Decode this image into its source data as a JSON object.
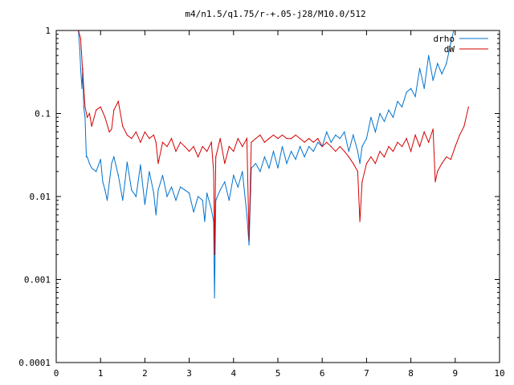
{
  "chart_data": {
    "type": "line",
    "title": "m4/n1.5/q1.75/r-+.05-j28/M10.0/512",
    "xlabel": "",
    "ylabel": "",
    "xlim": [
      0,
      10
    ],
    "ylim": [
      0.0001,
      1
    ],
    "yscale": "log",
    "grid": false,
    "legend_position": "top-right",
    "x_ticks": [
      0,
      1,
      2,
      3,
      4,
      5,
      6,
      7,
      8,
      9,
      10
    ],
    "x_tick_labels": [
      "0",
      "1",
      "2",
      "3",
      "4",
      "5",
      "6",
      "7",
      "8",
      "9",
      "10"
    ],
    "y_ticks": [
      0.0001,
      0.001,
      0.01,
      0.1,
      1
    ],
    "y_tick_labels": [
      "0.0001",
      "0.001",
      "0.01",
      "0.1",
      "1"
    ],
    "series": [
      {
        "name": "drho",
        "color": "#0072ce",
        "x": [
          0.5,
          0.53,
          0.55,
          0.58,
          0.6,
          0.62,
          0.65,
          0.68,
          0.7,
          0.75,
          0.8,
          0.9,
          1.0,
          1.05,
          1.1,
          1.15,
          1.2,
          1.25,
          1.3,
          1.4,
          1.5,
          1.55,
          1.6,
          1.7,
          1.8,
          1.9,
          2.0,
          2.1,
          2.2,
          2.25,
          2.3,
          2.4,
          2.5,
          2.6,
          2.7,
          2.8,
          2.9,
          3.0,
          3.1,
          3.2,
          3.3,
          3.35,
          3.4,
          3.5,
          3.55,
          3.57,
          3.6,
          3.7,
          3.8,
          3.9,
          4.0,
          4.1,
          4.2,
          4.3,
          4.35,
          4.4,
          4.5,
          4.6,
          4.7,
          4.8,
          4.9,
          5.0,
          5.1,
          5.2,
          5.3,
          5.4,
          5.5,
          5.6,
          5.7,
          5.8,
          5.9,
          6.0,
          6.1,
          6.2,
          6.3,
          6.4,
          6.5,
          6.6,
          6.7,
          6.8,
          6.85,
          6.9,
          7.0,
          7.1,
          7.2,
          7.3,
          7.4,
          7.5,
          7.6,
          7.7,
          7.8,
          7.9,
          8.0,
          8.1,
          8.2,
          8.3,
          8.4,
          8.5,
          8.6,
          8.7,
          8.8,
          8.9,
          9.0
        ],
        "y": [
          1.0,
          0.6,
          0.35,
          0.2,
          0.35,
          0.12,
          0.09,
          0.03,
          0.03,
          0.025,
          0.022,
          0.02,
          0.028,
          0.015,
          0.012,
          0.009,
          0.015,
          0.025,
          0.03,
          0.018,
          0.009,
          0.015,
          0.026,
          0.012,
          0.01,
          0.024,
          0.008,
          0.02,
          0.011,
          0.006,
          0.012,
          0.018,
          0.01,
          0.013,
          0.009,
          0.013,
          0.012,
          0.011,
          0.0065,
          0.01,
          0.009,
          0.005,
          0.011,
          0.007,
          0.005,
          0.0006,
          0.009,
          0.012,
          0.015,
          0.009,
          0.018,
          0.013,
          0.02,
          0.006,
          0.0026,
          0.022,
          0.025,
          0.02,
          0.03,
          0.022,
          0.035,
          0.022,
          0.04,
          0.025,
          0.035,
          0.028,
          0.04,
          0.03,
          0.04,
          0.035,
          0.045,
          0.04,
          0.06,
          0.045,
          0.055,
          0.05,
          0.06,
          0.035,
          0.055,
          0.035,
          0.025,
          0.04,
          0.05,
          0.09,
          0.06,
          0.1,
          0.08,
          0.11,
          0.09,
          0.14,
          0.12,
          0.18,
          0.2,
          0.16,
          0.35,
          0.2,
          0.5,
          0.25,
          0.4,
          0.3,
          0.4,
          0.7,
          1.2
        ]
      },
      {
        "name": "dW",
        "color": "#d40000",
        "x": [
          0.5,
          0.55,
          0.6,
          0.65,
          0.7,
          0.75,
          0.8,
          0.9,
          1.0,
          1.1,
          1.2,
          1.25,
          1.3,
          1.4,
          1.5,
          1.6,
          1.7,
          1.8,
          1.9,
          2.0,
          2.1,
          2.2,
          2.25,
          2.3,
          2.4,
          2.5,
          2.6,
          2.7,
          2.8,
          2.9,
          3.0,
          3.1,
          3.2,
          3.3,
          3.4,
          3.5,
          3.55,
          3.57,
          3.6,
          3.7,
          3.8,
          3.9,
          4.0,
          4.1,
          4.2,
          4.3,
          4.35,
          4.4,
          4.5,
          4.6,
          4.7,
          4.8,
          4.9,
          5.0,
          5.1,
          5.2,
          5.3,
          5.4,
          5.5,
          5.6,
          5.7,
          5.8,
          5.9,
          6.0,
          6.1,
          6.2,
          6.3,
          6.4,
          6.5,
          6.6,
          6.7,
          6.8,
          6.85,
          6.9,
          7.0,
          7.1,
          7.2,
          7.3,
          7.4,
          7.5,
          7.6,
          7.7,
          7.8,
          7.9,
          8.0,
          8.1,
          8.2,
          8.3,
          8.4,
          8.5,
          8.55,
          8.6,
          8.7,
          8.8,
          8.9,
          9.0,
          9.1,
          9.2,
          9.3
        ],
        "y": [
          1.0,
          0.8,
          0.3,
          0.12,
          0.09,
          0.1,
          0.07,
          0.11,
          0.12,
          0.09,
          0.06,
          0.065,
          0.11,
          0.14,
          0.07,
          0.055,
          0.05,
          0.06,
          0.045,
          0.06,
          0.05,
          0.055,
          0.045,
          0.025,
          0.045,
          0.04,
          0.05,
          0.035,
          0.045,
          0.04,
          0.035,
          0.04,
          0.03,
          0.04,
          0.035,
          0.045,
          0.02,
          0.002,
          0.03,
          0.05,
          0.025,
          0.04,
          0.035,
          0.05,
          0.04,
          0.05,
          0.003,
          0.045,
          0.05,
          0.055,
          0.045,
          0.05,
          0.055,
          0.05,
          0.055,
          0.05,
          0.05,
          0.055,
          0.05,
          0.045,
          0.05,
          0.045,
          0.05,
          0.04,
          0.045,
          0.04,
          0.035,
          0.04,
          0.035,
          0.03,
          0.025,
          0.02,
          0.005,
          0.015,
          0.025,
          0.03,
          0.025,
          0.035,
          0.03,
          0.04,
          0.035,
          0.045,
          0.04,
          0.05,
          0.035,
          0.055,
          0.04,
          0.06,
          0.045,
          0.065,
          0.015,
          0.02,
          0.025,
          0.03,
          0.028,
          0.04,
          0.055,
          0.07,
          0.12
        ]
      }
    ]
  }
}
